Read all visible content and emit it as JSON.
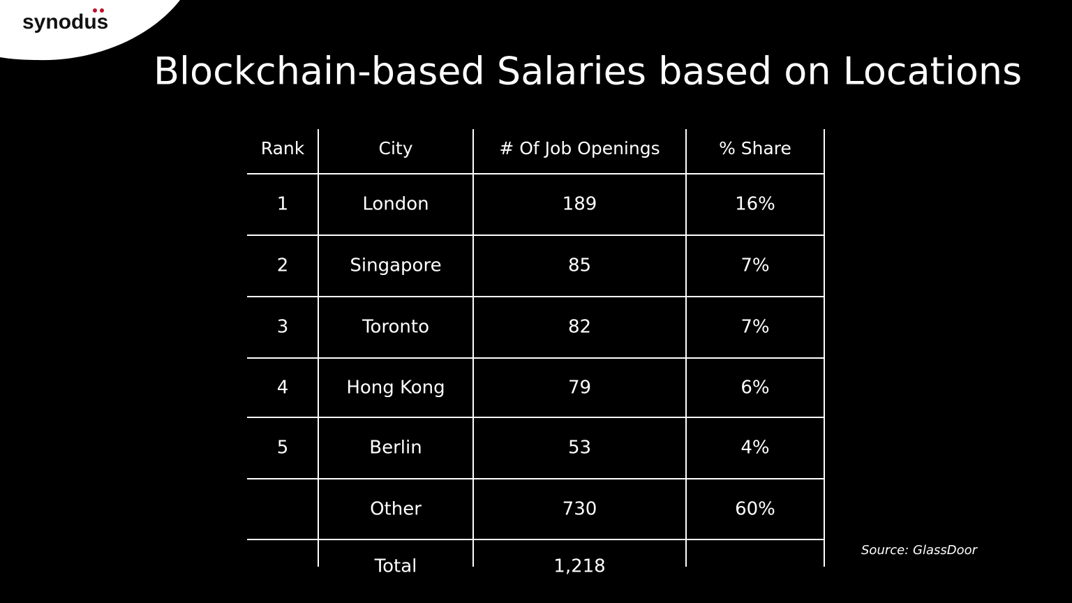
{
  "logo": "synodus",
  "title": "Blockchain-based Salaries based on Locations",
  "table": {
    "header": [
      "Rank",
      "City",
      "# Of Job Openings",
      "% Share"
    ],
    "rows": [
      [
        "1",
        "London",
        "189",
        "16%"
      ],
      [
        "2",
        "Singapore",
        "85",
        "7%"
      ],
      [
        "3",
        "Toronto",
        "82",
        "7%"
      ],
      [
        "4",
        "Hong Kong",
        "79",
        "6%"
      ],
      [
        "5",
        "Berlin",
        "53",
        "4%"
      ],
      [
        null,
        "Other",
        "730",
        "60%"
      ],
      [
        null,
        "Total",
        "1,218",
        null
      ]
    ]
  },
  "source": "Source: GlassDoor"
}
